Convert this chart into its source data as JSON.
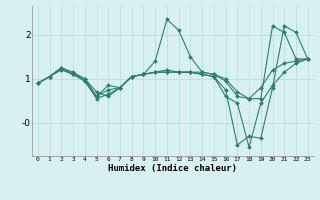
{
  "xlabel": "Humidex (Indice chaleur)",
  "bg_color": "#d9f0f0",
  "grid_color": "#b8dede",
  "line_color": "#2a7f6f",
  "x_ticks": [
    0,
    1,
    2,
    3,
    4,
    5,
    6,
    7,
    8,
    9,
    10,
    11,
    12,
    13,
    14,
    15,
    16,
    17,
    18,
    19,
    20,
    21,
    22,
    23
  ],
  "ylim": [
    -0.75,
    2.65
  ],
  "xlim": [
    -0.5,
    23.5
  ],
  "yticks": [
    0.0,
    1.0,
    2.0
  ],
  "ytick_labels": [
    "-0",
    "1",
    "2"
  ],
  "series": [
    [
      0.9,
      1.05,
      1.25,
      1.15,
      1.0,
      0.7,
      0.6,
      0.8,
      1.05,
      1.1,
      1.4,
      2.35,
      2.1,
      1.5,
      1.15,
      1.1,
      1.0,
      0.7,
      0.55,
      0.55,
      2.2,
      2.05,
      1.45,
      1.45
    ],
    [
      0.9,
      1.05,
      1.25,
      1.1,
      1.0,
      0.6,
      0.85,
      0.8,
      1.05,
      1.1,
      1.15,
      1.15,
      1.15,
      1.15,
      1.15,
      1.1,
      0.95,
      0.6,
      0.55,
      0.8,
      1.2,
      1.35,
      1.4,
      1.45
    ],
    [
      0.9,
      1.05,
      1.2,
      1.1,
      0.95,
      0.55,
      0.65,
      0.8,
      1.05,
      1.1,
      1.15,
      1.15,
      1.15,
      1.15,
      1.1,
      1.05,
      0.75,
      -0.5,
      -0.3,
      -0.35,
      0.8,
      2.2,
      2.05,
      1.45
    ],
    [
      0.9,
      1.05,
      1.25,
      1.1,
      0.95,
      0.6,
      0.75,
      0.8,
      1.05,
      1.1,
      1.15,
      1.2,
      1.15,
      1.15,
      1.1,
      1.05,
      0.6,
      0.45,
      -0.55,
      0.45,
      0.85,
      1.15,
      1.35,
      1.45
    ]
  ]
}
